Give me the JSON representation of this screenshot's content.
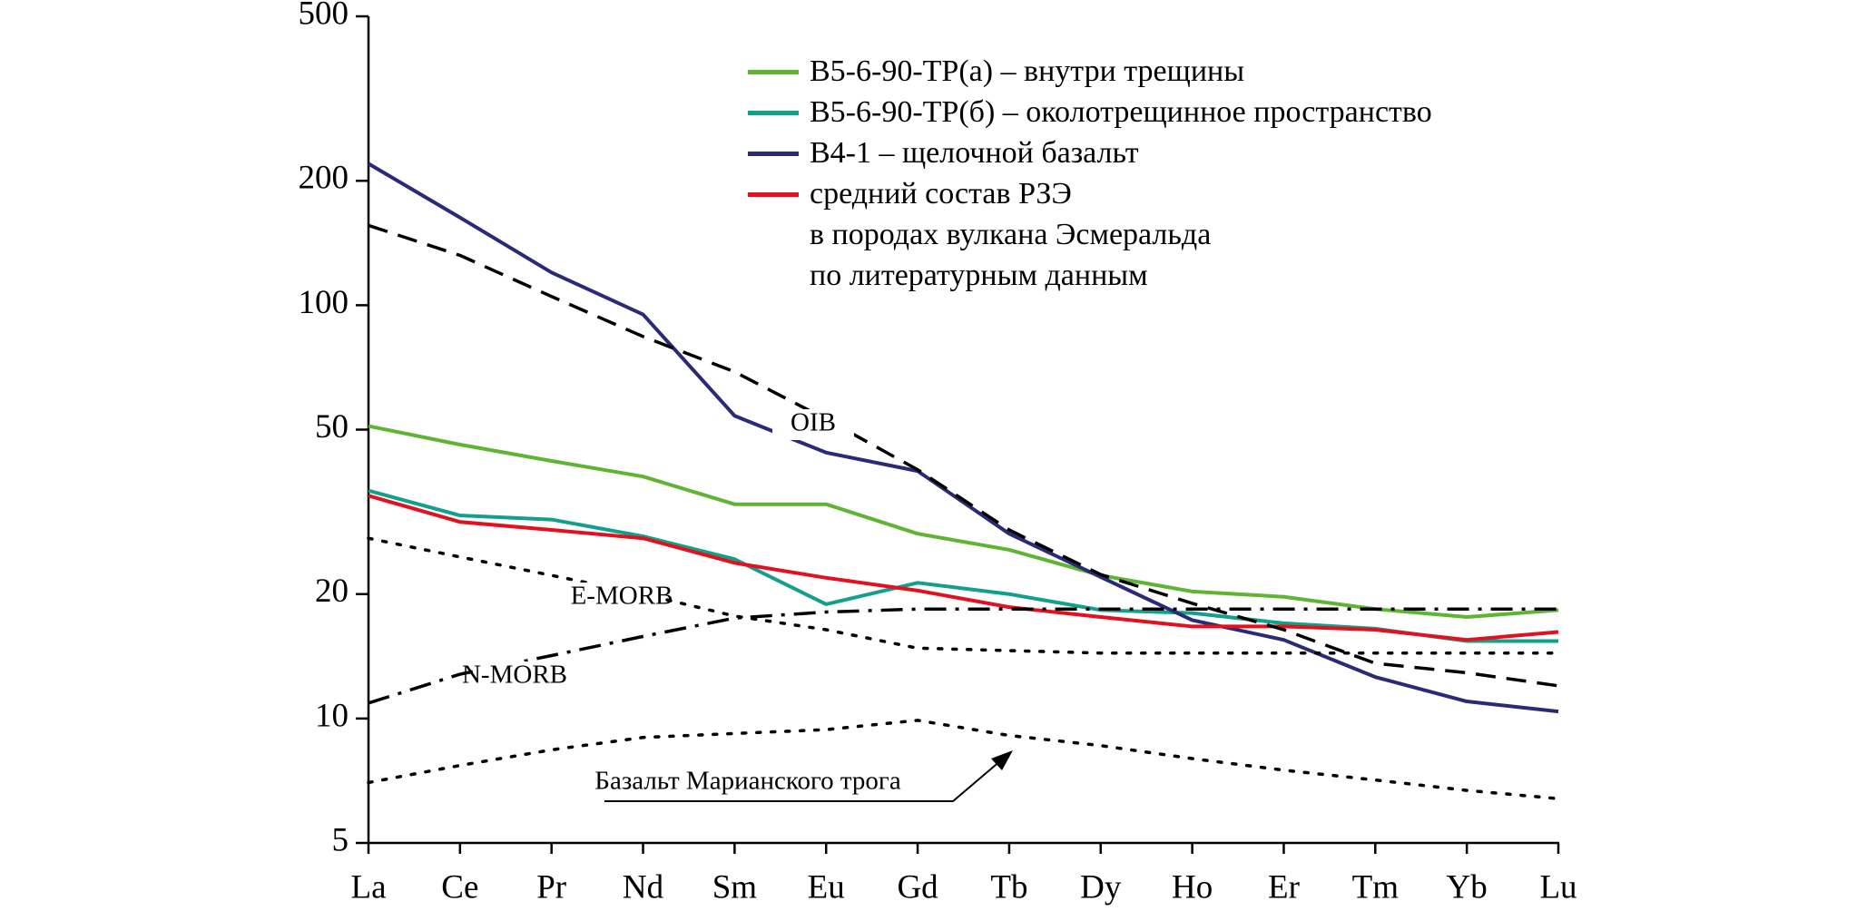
{
  "chart_data": {
    "type": "line",
    "categories": [
      "La",
      "Ce",
      "Pr",
      "Nd",
      "Sm",
      "Eu",
      "Gd",
      "Tb",
      "Dy",
      "Ho",
      "Er",
      "Tm",
      "Yb",
      "Lu"
    ],
    "ylim": [
      5,
      500
    ],
    "yticks": [
      5,
      10,
      20,
      50,
      100,
      200,
      500
    ],
    "log_scale": true,
    "grid": false,
    "series": [
      {
        "name": "B5-6-90-TP(а) – внутри трещины",
        "color": "#5db532",
        "style": "solid",
        "legend": true,
        "values": [
          51,
          46,
          42,
          38.5,
          33,
          33,
          28,
          25.6,
          22.2,
          20.3,
          19.7,
          18.4,
          17.6,
          18.3
        ]
      },
      {
        "name": "B5-6-90-TP(б) – околотрещинное пространство",
        "color": "#12a08a",
        "style": "solid",
        "legend": true,
        "values": [
          35.6,
          31,
          30.3,
          27.6,
          24.3,
          18.9,
          21.3,
          20,
          18.3,
          18,
          17,
          16.5,
          15.4,
          15.4
        ]
      },
      {
        "name": "B4-1 – щелочной базальт",
        "color": "#2b2a78",
        "style": "solid",
        "legend": true,
        "values": [
          220,
          163,
          120,
          95,
          54,
          44,
          39.7,
          28,
          22,
          17.3,
          15.5,
          12.6,
          11,
          10.4
        ]
      },
      {
        "name": "средний состав РЗЭ\nв породах вулкана Эсмеральда\nпо литературным данным",
        "color": "#e3101f",
        "style": "solid",
        "legend": true,
        "values": [
          34.6,
          29.9,
          28.6,
          27.3,
          23.8,
          21.9,
          20.4,
          18.6,
          17.6,
          16.7,
          16.7,
          16.4,
          15.5,
          16.2
        ]
      },
      {
        "name": "OIB",
        "color": "#000000",
        "style": "dashed",
        "legend": false,
        "values": [
          156,
          132,
          105,
          84,
          69,
          53,
          40,
          28.6,
          22.3,
          19,
          16.4,
          13.6,
          12.9,
          12
        ]
      },
      {
        "name": "E-MORB",
        "color": "#000000",
        "style": "dotted",
        "legend": false,
        "values": [
          27.3,
          24.6,
          22.2,
          20,
          17.7,
          16.4,
          14.8,
          14.6,
          14.4,
          14.4,
          14.4,
          14.4,
          14.4,
          14.4
        ]
      },
      {
        "name": "N-MORB",
        "color": "#000000",
        "style": "dashdot",
        "legend": false,
        "values": [
          10.9,
          12.8,
          14.2,
          15.8,
          17.5,
          18.1,
          18.4,
          18.4,
          18.4,
          18.4,
          18.4,
          18.4,
          18.4,
          18.4
        ]
      },
      {
        "name": "Базальт Марианского трога",
        "color": "#000000",
        "style": "dotted",
        "legend": false,
        "values": [
          7,
          7.7,
          8.4,
          9,
          9.2,
          9.4,
          9.9,
          9.1,
          8.6,
          8,
          7.5,
          7.1,
          6.7,
          6.4
        ]
      }
    ]
  }
}
